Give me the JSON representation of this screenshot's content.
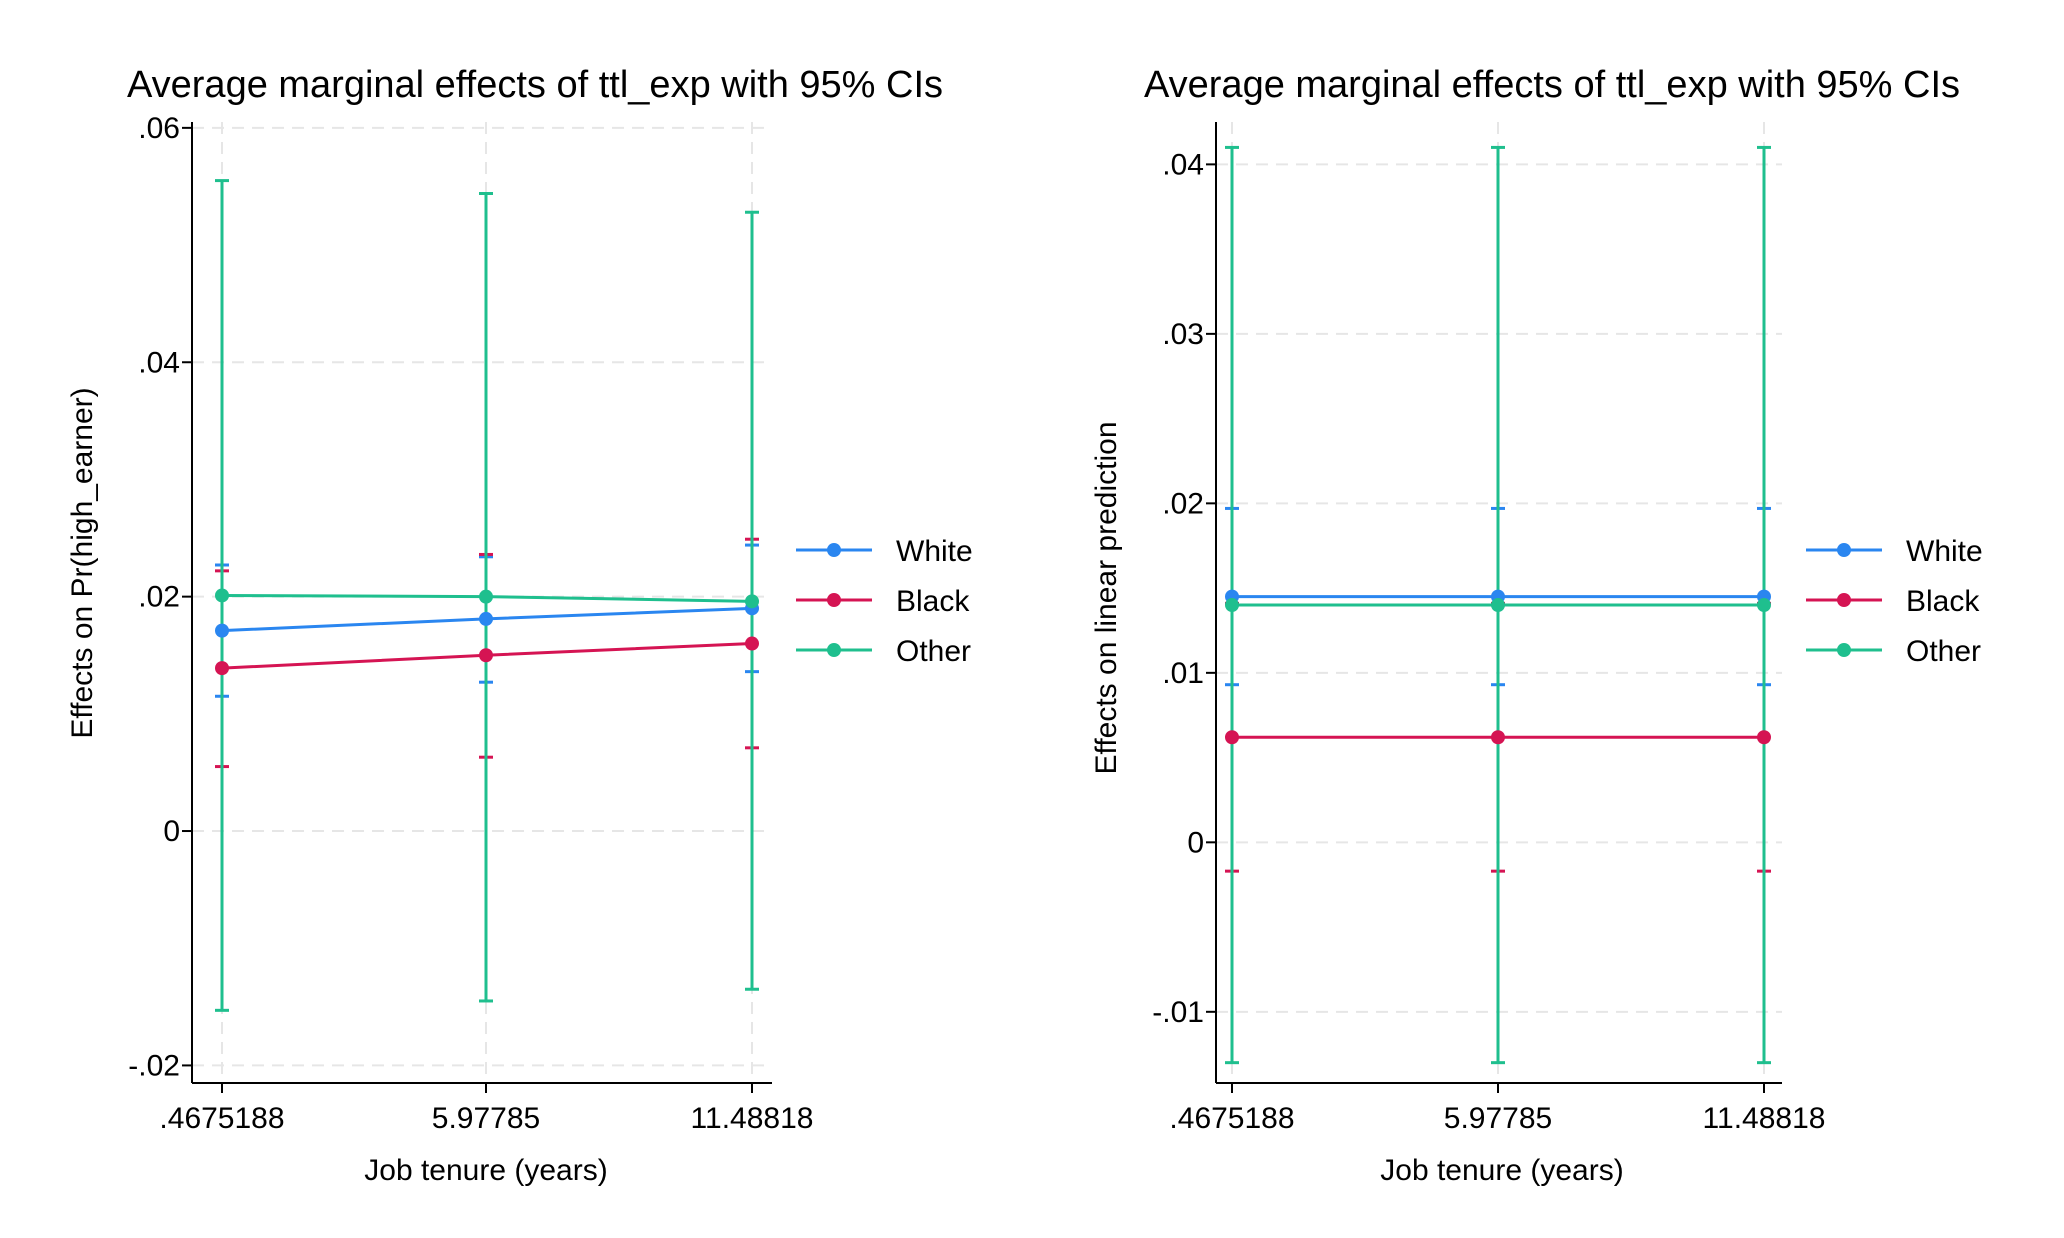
{
  "colors": {
    "White": "#2a86f0",
    "Black": "#d51453",
    "Other": "#1fbf8e",
    "grid": "#e6e6e6",
    "axis": "#000000"
  },
  "chart_data": [
    {
      "type": "line",
      "title": "Average marginal effects of ttl_exp with 95% CIs",
      "xlabel": "Job tenure (years)",
      "ylabel": "Effects on Pr(high_earner)",
      "categories": [
        ".4675188",
        "5.97785",
        "11.48818"
      ],
      "ylim": [
        -0.0215,
        0.0605
      ],
      "yticks": [
        -0.02,
        0,
        0.02,
        0.04,
        0.06
      ],
      "ytick_labels": [
        "-.02",
        "0",
        ".02",
        ".04",
        ".06"
      ],
      "grid": true,
      "legend_position": "right",
      "series": [
        {
          "name": "White",
          "values": [
            0.0171,
            0.0181,
            0.019
          ],
          "ci_low": [
            0.0115,
            0.0127,
            0.0136
          ],
          "ci_high": [
            0.0227,
            0.0234,
            0.0244
          ]
        },
        {
          "name": "Black",
          "values": [
            0.0139,
            0.015,
            0.016
          ],
          "ci_low": [
            0.0055,
            0.0063,
            0.0071
          ],
          "ci_high": [
            0.0222,
            0.0236,
            0.0249
          ]
        },
        {
          "name": "Other",
          "values": [
            0.0201,
            0.02,
            0.0196
          ],
          "ci_low": [
            -0.0153,
            -0.0145,
            -0.0135
          ],
          "ci_high": [
            0.0555,
            0.0544,
            0.0528
          ]
        }
      ]
    },
    {
      "type": "line",
      "title": "Average marginal effects of ttl_exp with 95% CIs",
      "xlabel": "Job tenure (years)",
      "ylabel": "Effects on linear prediction",
      "categories": [
        ".4675188",
        "5.97785",
        "11.48818"
      ],
      "ylim": [
        -0.0142,
        0.0425
      ],
      "yticks": [
        -0.01,
        0,
        0.01,
        0.02,
        0.03,
        0.04
      ],
      "ytick_labels": [
        "-.01",
        "0",
        ".01",
        ".02",
        ".03",
        ".04"
      ],
      "grid": true,
      "legend_position": "right",
      "series": [
        {
          "name": "White",
          "values": [
            0.0145,
            0.0145,
            0.0145
          ],
          "ci_low": [
            0.0093,
            0.0093,
            0.0093
          ],
          "ci_high": [
            0.0197,
            0.0197,
            0.0197
          ]
        },
        {
          "name": "Black",
          "values": [
            0.0062,
            0.0062,
            0.0062
          ],
          "ci_low": [
            -0.0017,
            -0.0017,
            -0.0017
          ],
          "ci_high": [
            0.0141,
            0.0141,
            0.0141
          ]
        },
        {
          "name": "Other",
          "values": [
            0.014,
            0.014,
            0.014
          ],
          "ci_low": [
            -0.013,
            -0.013,
            -0.013
          ],
          "ci_high": [
            0.041,
            0.041,
            0.041
          ]
        }
      ]
    }
  ]
}
